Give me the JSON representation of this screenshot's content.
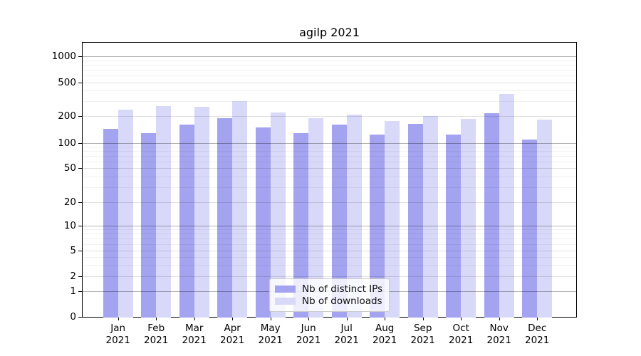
{
  "title": "agilp 2021",
  "legend": {
    "items": [
      {
        "label": "Nb of distinct IPs",
        "color": "#a3a3f0"
      },
      {
        "label": "Nb of downloads",
        "color": "#d8d8f9"
      }
    ]
  },
  "y_axis": {
    "tick_labels": [
      "0",
      "1",
      "2",
      "5",
      "10",
      "20",
      "50",
      "100",
      "200",
      "500",
      "1000"
    ]
  },
  "x_axis": {
    "months": [
      "Jan",
      "Feb",
      "Mar",
      "Apr",
      "May",
      "Jun",
      "Jul",
      "Aug",
      "Sep",
      "Oct",
      "Nov",
      "Dec"
    ],
    "year": "2021"
  },
  "chart_data": {
    "type": "bar",
    "title": "agilp 2021",
    "categories": [
      "Jan 2021",
      "Feb 2021",
      "Mar 2021",
      "Apr 2021",
      "May 2021",
      "Jun 2021",
      "Jul 2021",
      "Aug 2021",
      "Sep 2021",
      "Oct 2021",
      "Nov 2021",
      "Dec 2021"
    ],
    "series": [
      {
        "name": "Nb of distinct IPs",
        "color": "#a3a3f0",
        "values": [
          145,
          130,
          160,
          190,
          150,
          130,
          160,
          125,
          165,
          125,
          218,
          110
        ]
      },
      {
        "name": "Nb of downloads",
        "color": "#d8d8f9",
        "values": [
          240,
          263,
          258,
          303,
          220,
          190,
          206,
          176,
          200,
          186,
          366,
          181
        ]
      }
    ],
    "xlabel": "",
    "ylabel": "",
    "yscale": "log-like (compressed linear segment between 0 and 1)",
    "y_ticks": [
      0,
      1,
      2,
      5,
      10,
      20,
      50,
      100,
      200,
      500,
      1000
    ],
    "ylim": [
      0,
      1400
    ],
    "grid": "horizontal major and minor gridlines drawn over bars",
    "legend_position": "inside plot, lower middle"
  }
}
